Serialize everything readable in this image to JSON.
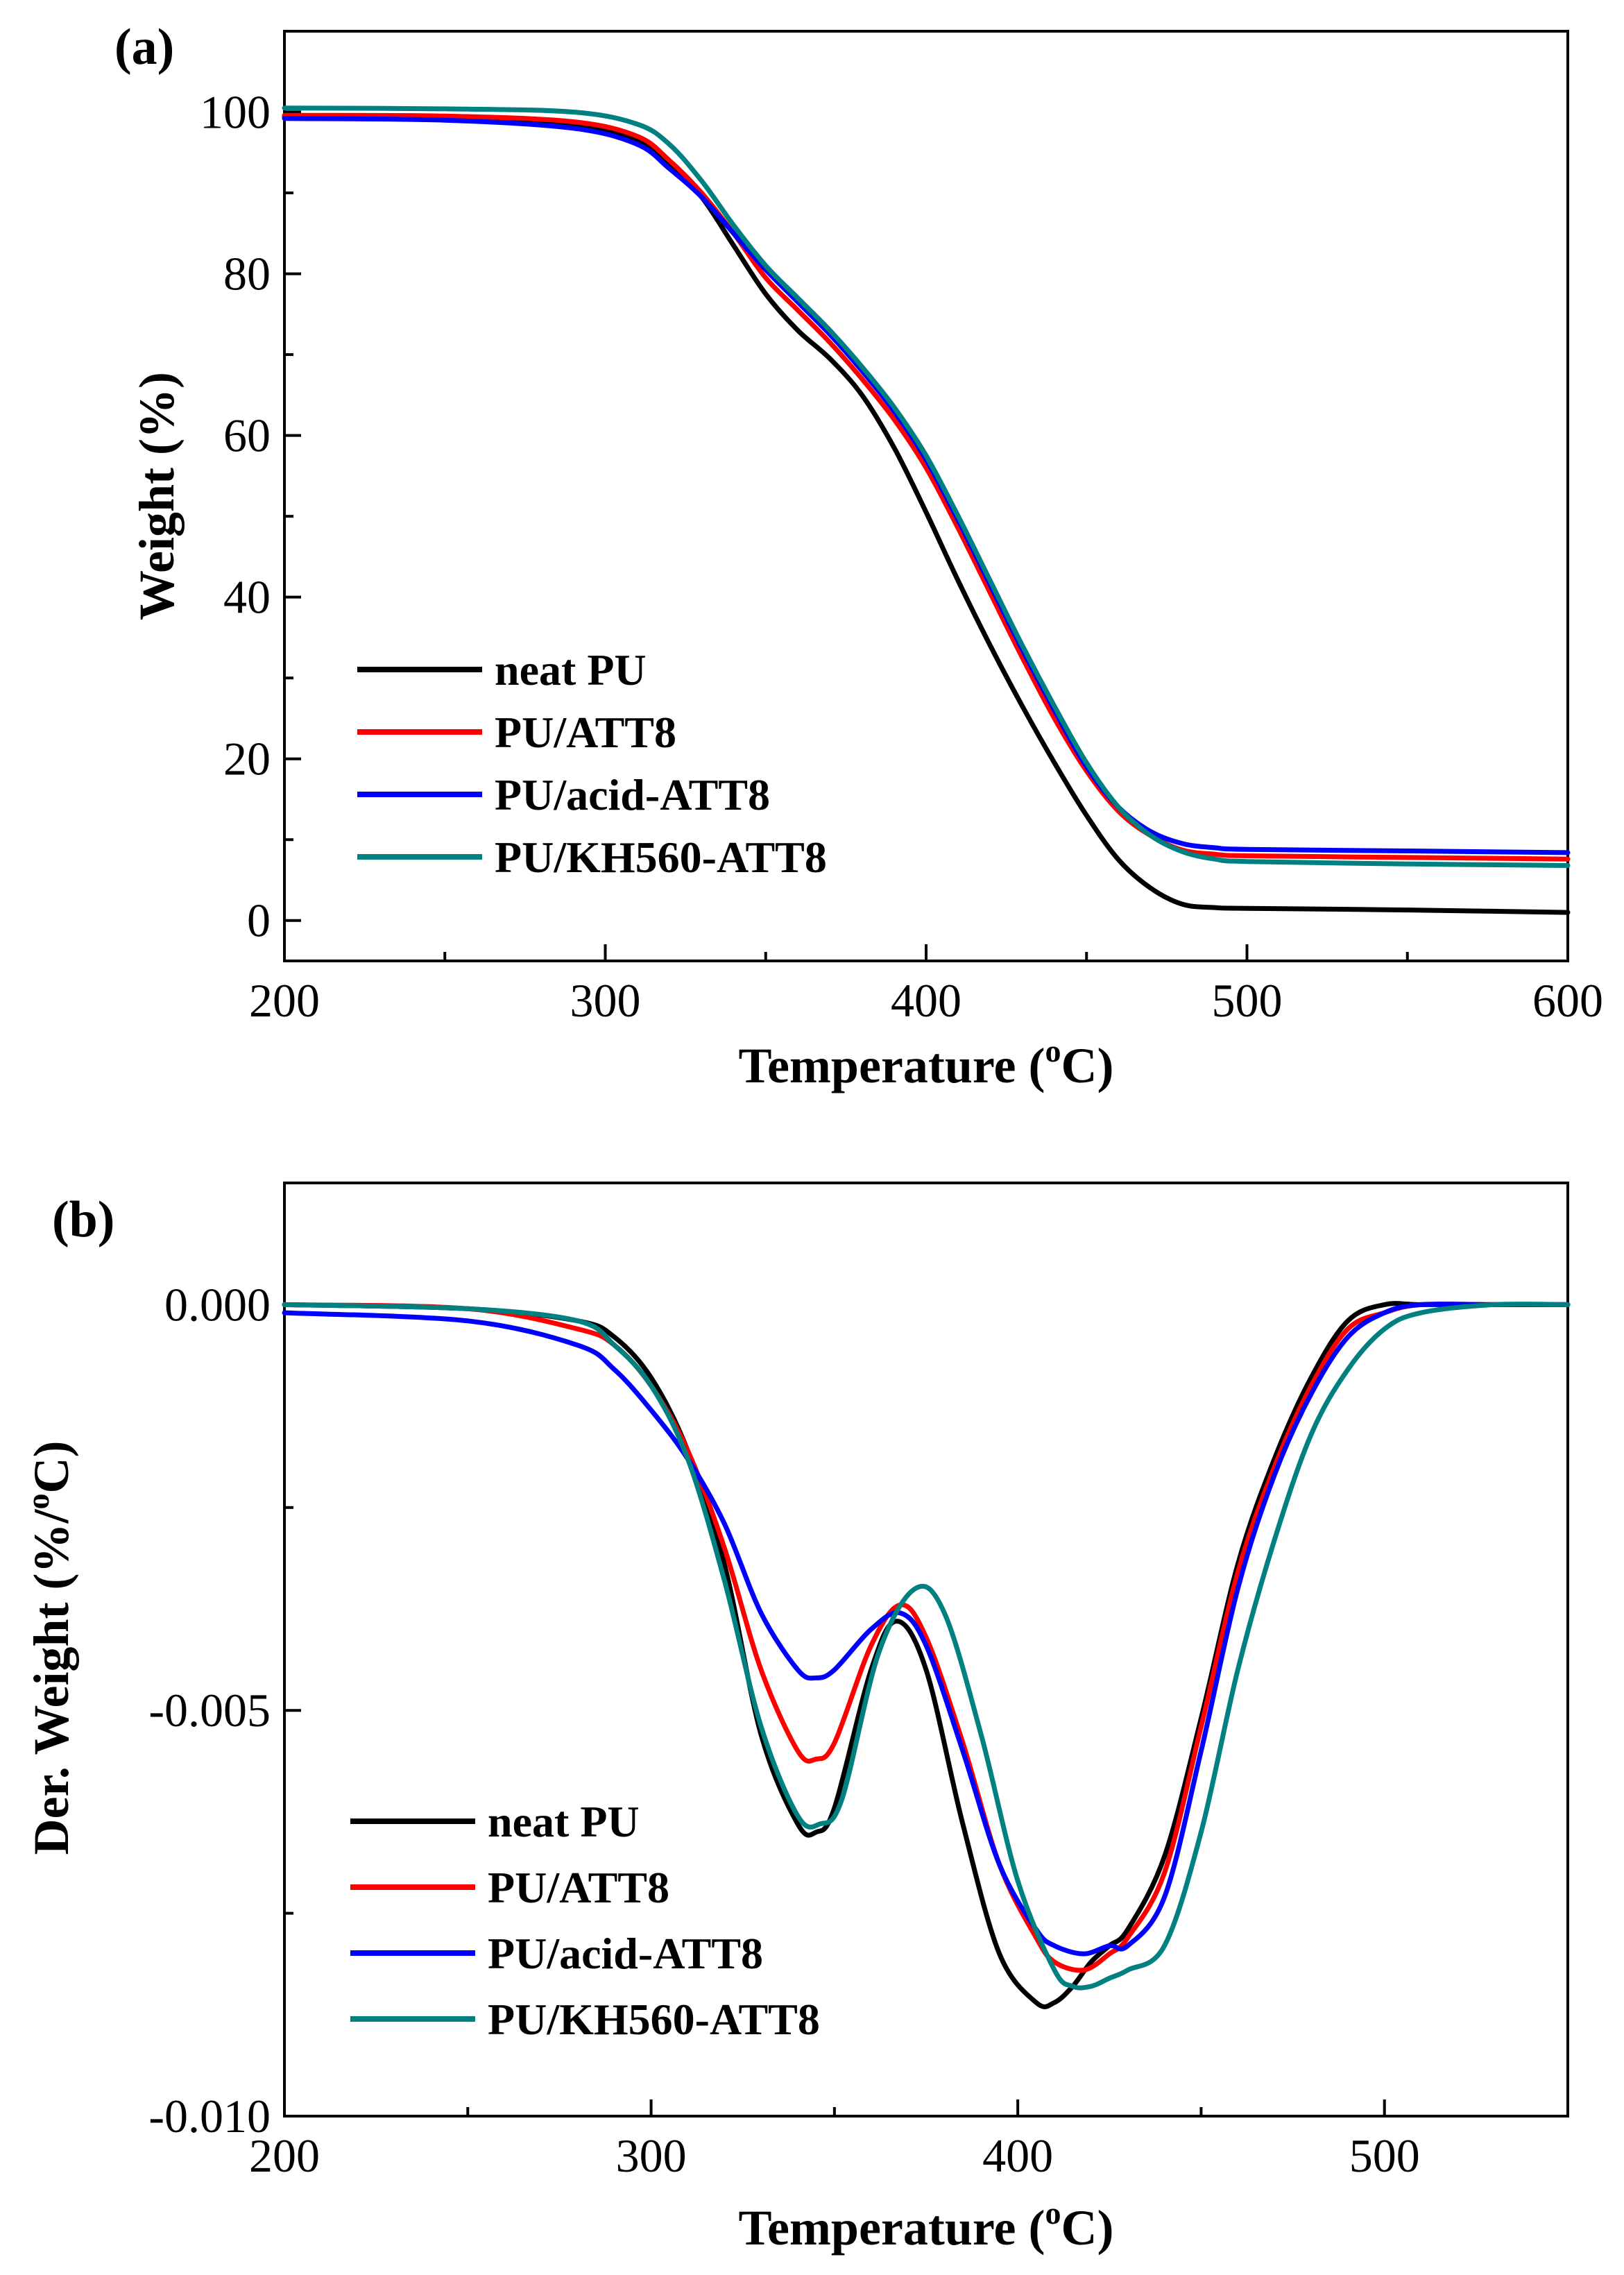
{
  "chart_data": [
    {
      "type": "line",
      "panel_label": "(a)",
      "xlabel": "Temperature (",
      "xlabel_sup": "o",
      "xlabel_tail": "C)",
      "ylabel": "Weight (%)",
      "xlim": [
        200,
        600
      ],
      "ylim": [
        -5,
        110
      ],
      "xticks": [
        200,
        300,
        400,
        500,
        600
      ],
      "xminor": [
        250,
        350,
        450,
        550
      ],
      "yticks": [
        0,
        20,
        40,
        60,
        80,
        100
      ],
      "yminor": [
        10,
        30,
        50,
        70,
        90
      ],
      "ytick_labels": [
        "0",
        "20",
        "40",
        "60",
        "80",
        "100"
      ],
      "xtick_labels": [
        "200",
        "300",
        "400",
        "500",
        "600"
      ],
      "legend_position": "bottom-left",
      "series": [
        {
          "name": "neat PU",
          "color": "#000000",
          "x": [
            200,
            250,
            290,
            310,
            320,
            330,
            340,
            350,
            360,
            370,
            380,
            390,
            400,
            410,
            420,
            430,
            440,
            450,
            460,
            470,
            480,
            490,
            500,
            550,
            600
          ],
          "y": [
            99.4,
            99.3,
            98.5,
            96.5,
            93.5,
            89.5,
            83.5,
            77.5,
            73.0,
            69.5,
            65.0,
            58.5,
            50.5,
            42.0,
            34.0,
            26.5,
            19.5,
            13.0,
            7.5,
            4.0,
            2.0,
            1.6,
            1.5,
            1.3,
            1.0
          ]
        },
        {
          "name": "PU/ATT8",
          "color": "#ff0000",
          "x": [
            200,
            250,
            290,
            310,
            320,
            330,
            340,
            350,
            360,
            370,
            380,
            390,
            400,
            410,
            420,
            430,
            440,
            450,
            460,
            470,
            480,
            490,
            500,
            550,
            600
          ],
          "y": [
            99.6,
            99.5,
            98.8,
            97.0,
            94.0,
            90.0,
            85.0,
            79.5,
            75.5,
            71.5,
            67.0,
            62.0,
            56.0,
            48.5,
            40.5,
            32.5,
            25.0,
            18.5,
            13.5,
            10.5,
            8.7,
            8.2,
            8.0,
            7.8,
            7.6
          ]
        },
        {
          "name": "PU/acid-ATT8",
          "color": "#0000ff",
          "x": [
            200,
            250,
            290,
            310,
            320,
            330,
            340,
            350,
            360,
            370,
            380,
            390,
            400,
            410,
            420,
            430,
            440,
            450,
            460,
            470,
            480,
            490,
            500,
            550,
            600
          ],
          "y": [
            99.2,
            99.0,
            98.0,
            96.0,
            93.0,
            89.5,
            85.0,
            80.5,
            76.5,
            72.5,
            68.0,
            63.0,
            57.0,
            49.5,
            41.5,
            33.5,
            26.0,
            19.0,
            14.0,
            11.0,
            9.5,
            9.0,
            8.8,
            8.6,
            8.4
          ]
        },
        {
          "name": "PU/KH560-ATT8",
          "color": "#008080",
          "x": [
            200,
            250,
            290,
            310,
            320,
            330,
            340,
            350,
            360,
            370,
            380,
            390,
            400,
            410,
            420,
            430,
            440,
            450,
            460,
            470,
            480,
            490,
            500,
            550,
            600
          ],
          "y": [
            100.5,
            100.4,
            100.0,
            98.5,
            96.0,
            91.5,
            86.0,
            81.0,
            77.0,
            73.0,
            68.5,
            63.5,
            57.5,
            50.0,
            42.0,
            34.0,
            26.5,
            19.5,
            14.0,
            10.5,
            8.5,
            7.6,
            7.3,
            7.0,
            6.8
          ]
        }
      ]
    },
    {
      "type": "line",
      "panel_label": "(b)",
      "xlabel": "Temperature (",
      "xlabel_sup": "o",
      "xlabel_tail": "C)",
      "ylabel": "Der. Weight (%/",
      "ylabel_sup": "o",
      "ylabel_tail": "C)",
      "xlim": [
        200,
        550
      ],
      "ylim": [
        -0.01,
        0.0015
      ],
      "xticks": [
        200,
        300,
        400,
        500
      ],
      "xminor": [
        250,
        350,
        450
      ],
      "yticks": [
        0.0,
        -0.005,
        -0.01
      ],
      "yminor": [
        -0.0025,
        -0.0075
      ],
      "ytick_labels": [
        "0.000",
        "-0.005",
        "-0.010"
      ],
      "xtick_labels": [
        "200",
        "300",
        "400",
        "500"
      ],
      "legend_position": "bottom-left",
      "series": [
        {
          "name": "neat PU",
          "color": "#000000",
          "x": [
            200,
            250,
            280,
            290,
            300,
            310,
            320,
            330,
            340,
            345,
            350,
            360,
            367,
            375,
            385,
            395,
            405,
            410,
            415,
            420,
            425,
            430,
            440,
            450,
            460,
            470,
            480,
            490,
            500,
            510,
            530,
            550
          ],
          "y": [
            0.0,
            -5e-05,
            -0.0002,
            -0.0004,
            -0.0009,
            -0.0018,
            -0.0032,
            -0.0053,
            -0.0064,
            -0.0065,
            -0.0062,
            -0.0045,
            -0.0039,
            -0.0045,
            -0.0064,
            -0.008,
            -0.0086,
            -0.0086,
            -0.0084,
            -0.0081,
            -0.0079,
            -0.0077,
            -0.0068,
            -0.0051,
            -0.0032,
            -0.0019,
            -0.0009,
            -0.0002,
            0.0,
            0.0,
            0.0,
            0.0
          ]
        },
        {
          "name": "PU/ATT8",
          "color": "#ff0000",
          "x": [
            200,
            250,
            280,
            290,
            300,
            310,
            320,
            330,
            340,
            345,
            350,
            360,
            368,
            375,
            385,
            395,
            405,
            410,
            418,
            425,
            430,
            440,
            450,
            460,
            470,
            480,
            490,
            500,
            510,
            530,
            550
          ],
          "y": [
            0.0,
            -5e-05,
            -0.0003,
            -0.0005,
            -0.001,
            -0.0018,
            -0.003,
            -0.0045,
            -0.0055,
            -0.0056,
            -0.0054,
            -0.0042,
            -0.0037,
            -0.0041,
            -0.0054,
            -0.0069,
            -0.0078,
            -0.0081,
            -0.0082,
            -0.008,
            -0.0078,
            -0.007,
            -0.0052,
            -0.0033,
            -0.002,
            -0.001,
            -0.0003,
            -0.0001,
            0.0,
            0.0,
            0.0
          ]
        },
        {
          "name": "PU/acid-ATT8",
          "color": "#0000ff",
          "x": [
            200,
            250,
            280,
            290,
            300,
            310,
            320,
            330,
            340,
            345,
            350,
            360,
            368,
            375,
            385,
            395,
            405,
            410,
            418,
            425,
            430,
            440,
            450,
            460,
            470,
            480,
            490,
            500,
            510,
            530,
            550
          ],
          "y": [
            -0.0001,
            -0.0002,
            -0.0005,
            -0.0008,
            -0.0013,
            -0.0019,
            -0.0027,
            -0.0038,
            -0.0045,
            -0.0046,
            -0.0045,
            -0.004,
            -0.0038,
            -0.0042,
            -0.0055,
            -0.0069,
            -0.0077,
            -0.0079,
            -0.008,
            -0.0079,
            -0.0079,
            -0.0073,
            -0.0055,
            -0.0035,
            -0.0021,
            -0.0011,
            -0.0004,
            -0.0001,
            0.0,
            0.0,
            0.0
          ]
        },
        {
          "name": "PU/KH560-ATT8",
          "color": "#008080",
          "x": [
            200,
            250,
            280,
            290,
            300,
            310,
            320,
            330,
            340,
            346,
            352,
            362,
            372,
            380,
            390,
            400,
            410,
            415,
            420,
            425,
            430,
            440,
            450,
            460,
            470,
            480,
            490,
            500,
            510,
            530,
            550
          ],
          "y": [
            0.0,
            -5e-05,
            -0.0002,
            -0.0005,
            -0.001,
            -0.0019,
            -0.0034,
            -0.0052,
            -0.0063,
            -0.0064,
            -0.0061,
            -0.0043,
            -0.0035,
            -0.0038,
            -0.0053,
            -0.0071,
            -0.0082,
            -0.0084,
            -0.0084,
            -0.0083,
            -0.0082,
            -0.0079,
            -0.0065,
            -0.0045,
            -0.0029,
            -0.0016,
            -0.0008,
            -0.0003,
            -0.0001,
            0.0,
            0.0
          ]
        }
      ]
    }
  ]
}
